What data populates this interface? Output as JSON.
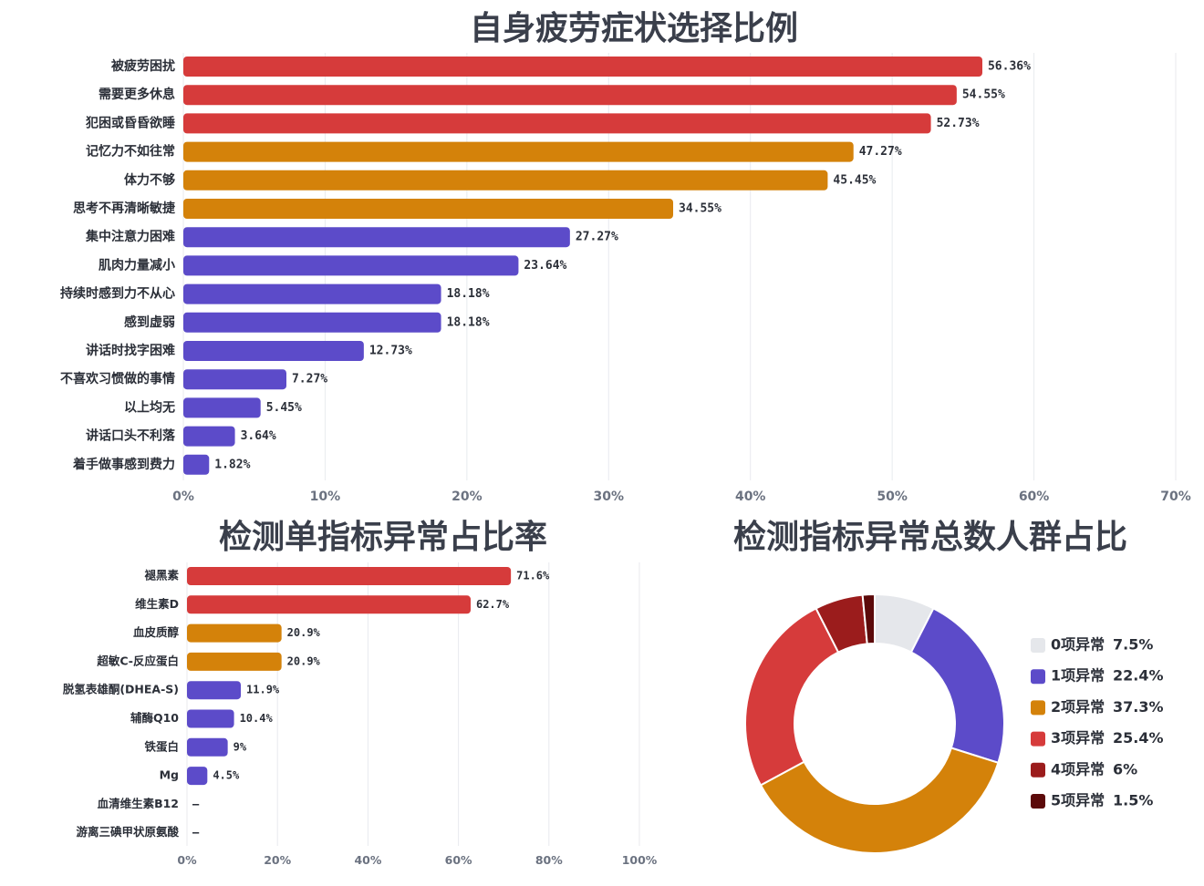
{
  "titles": {
    "top": "自身疲劳症状选择比例",
    "bottom_left": "检测单指标异常占比率",
    "bottom_right": "检测指标异常总数人群占比"
  },
  "colors": {
    "red": "#d63b3b",
    "orange": "#d4820a",
    "purple": "#5c4bc9",
    "grid": "#e8eaee"
  },
  "chart_data": [
    {
      "type": "bar",
      "orientation": "horizontal",
      "title": "自身疲劳症状选择比例",
      "categories": [
        "被疲劳困扰",
        "需要更多休息",
        "犯困或昏昏欲睡",
        "记忆力不如往常",
        "体力不够",
        "思考不再清晰敏捷",
        "集中注意力困难",
        "肌肉力量减小",
        "持续时感到力不从心",
        "感到虚弱",
        "讲话时找字困难",
        "不喜欢习惯做的事情",
        "以上均无",
        "讲话口头不利落",
        "着手做事感到费力"
      ],
      "values": [
        56.36,
        54.55,
        52.73,
        47.27,
        45.45,
        34.55,
        27.27,
        23.64,
        18.18,
        18.18,
        12.73,
        7.27,
        5.45,
        3.64,
        1.82
      ],
      "value_labels": [
        "56.36%",
        "54.55%",
        "52.73%",
        "47.27%",
        "45.45%",
        "34.55%",
        "27.27%",
        "23.64%",
        "18.18%",
        "18.18%",
        "12.73%",
        "7.27%",
        "5.45%",
        "3.64%",
        "1.82%"
      ],
      "colors": [
        "#d63b3b",
        "#d63b3b",
        "#d63b3b",
        "#d4820a",
        "#d4820a",
        "#d4820a",
        "#5c4bc9",
        "#5c4bc9",
        "#5c4bc9",
        "#5c4bc9",
        "#5c4bc9",
        "#5c4bc9",
        "#5c4bc9",
        "#5c4bc9",
        "#5c4bc9"
      ],
      "xlim": [
        0,
        70
      ],
      "xticks": [
        0,
        10,
        20,
        30,
        40,
        50,
        60,
        70
      ],
      "xtick_labels": [
        "0%",
        "10%",
        "20%",
        "30%",
        "40%",
        "50%",
        "60%",
        "70%"
      ],
      "grid": true
    },
    {
      "type": "bar",
      "orientation": "horizontal",
      "title": "检测单指标异常占比率",
      "categories": [
        "褪黑素",
        "维生素D",
        "血皮质醇",
        "超敏C-反应蛋白",
        "脱氢表雄酮(DHEA-S)",
        "辅酶Q10",
        "铁蛋白",
        "Mg",
        "血清维生素B12",
        "游离三碘甲状原氨酸"
      ],
      "values": [
        71.6,
        62.7,
        20.9,
        20.9,
        11.9,
        10.4,
        9,
        4.5,
        null,
        null
      ],
      "value_labels": [
        "71.6%",
        "62.7%",
        "20.9%",
        "20.9%",
        "11.9%",
        "10.4%",
        "9%",
        "4.5%",
        "—",
        "—"
      ],
      "colors": [
        "#d63b3b",
        "#d63b3b",
        "#d4820a",
        "#d4820a",
        "#5c4bc9",
        "#5c4bc9",
        "#5c4bc9",
        "#5c4bc9",
        "#5c4bc9",
        "#5c4bc9"
      ],
      "xlim": [
        0,
        100
      ],
      "xticks": [
        0,
        20,
        40,
        60,
        80,
        100
      ],
      "xtick_labels": [
        "0%",
        "20%",
        "40%",
        "60%",
        "80%",
        "100%"
      ],
      "grid": true
    },
    {
      "type": "pie",
      "variant": "donut",
      "title": "检测指标异常总数人群占比",
      "labels": [
        "0项异常",
        "1项异常",
        "2项异常",
        "3项异常",
        "4项异常",
        "5项异常"
      ],
      "values": [
        7.5,
        22.4,
        37.3,
        25.4,
        6,
        1.5
      ],
      "value_labels": [
        "7.5%",
        "22.4%",
        "37.3%",
        "25.4%",
        "6%",
        "1.5%"
      ],
      "colors": [
        "#e5e7eb",
        "#5c4bc9",
        "#d4820a",
        "#d63b3b",
        "#9b1c1c",
        "#5c0a0a"
      ],
      "legend_position": "right"
    }
  ]
}
